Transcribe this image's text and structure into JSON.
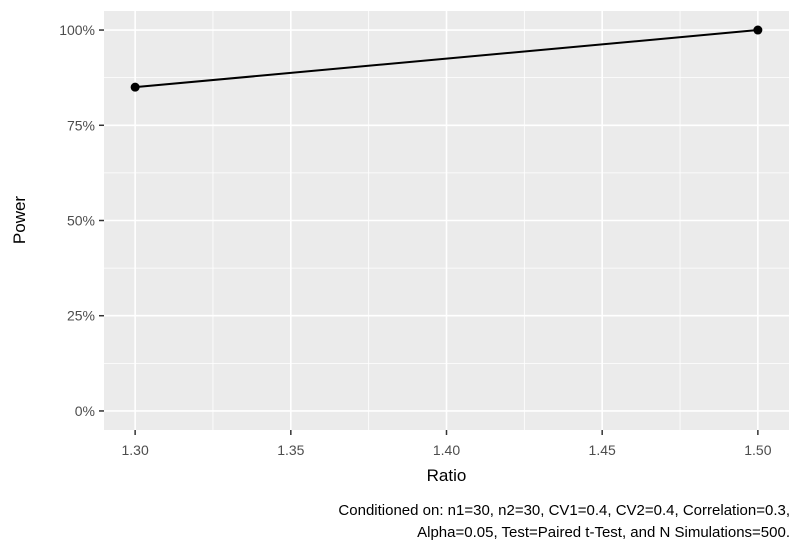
{
  "chart_data": {
    "type": "line",
    "title": "",
    "xlabel": "Ratio",
    "ylabel": "Power",
    "x": [
      1.3,
      1.5
    ],
    "series": [
      {
        "name": "Power",
        "values": [
          0.85,
          1.0
        ]
      }
    ],
    "xlim": [
      1.29,
      1.51
    ],
    "ylim": [
      -0.05,
      1.05
    ],
    "x_ticks": [
      1.3,
      1.35,
      1.4,
      1.45,
      1.5
    ],
    "x_tick_labels": [
      "1.30",
      "1.35",
      "1.40",
      "1.45",
      "1.50"
    ],
    "x_minor_ticks": [
      1.325,
      1.375,
      1.425,
      1.475
    ],
    "y_ticks": [
      0,
      0.25,
      0.5,
      0.75,
      1.0
    ],
    "y_tick_labels": [
      "0%",
      "25%",
      "50%",
      "75%",
      "100%"
    ],
    "y_minor_ticks": [
      0.125,
      0.375,
      0.625,
      0.875
    ],
    "grid": "on",
    "legend": "none",
    "caption_line1": "Conditioned on: n1=30, n2=30, CV1=0.4, CV2=0.4, Correlation=0.3,",
    "caption_line2": "Alpha=0.05, Test=Paired t-Test, and N Simulations=500.",
    "colors": {
      "panel_background": "#EBEBEB",
      "gridline": "#FFFFFF",
      "tick_label": "#4D4D4D",
      "tick_mark": "#333333",
      "line": "#000000",
      "point": "#000000",
      "axis_title": "#000000",
      "caption": "#000000"
    }
  }
}
